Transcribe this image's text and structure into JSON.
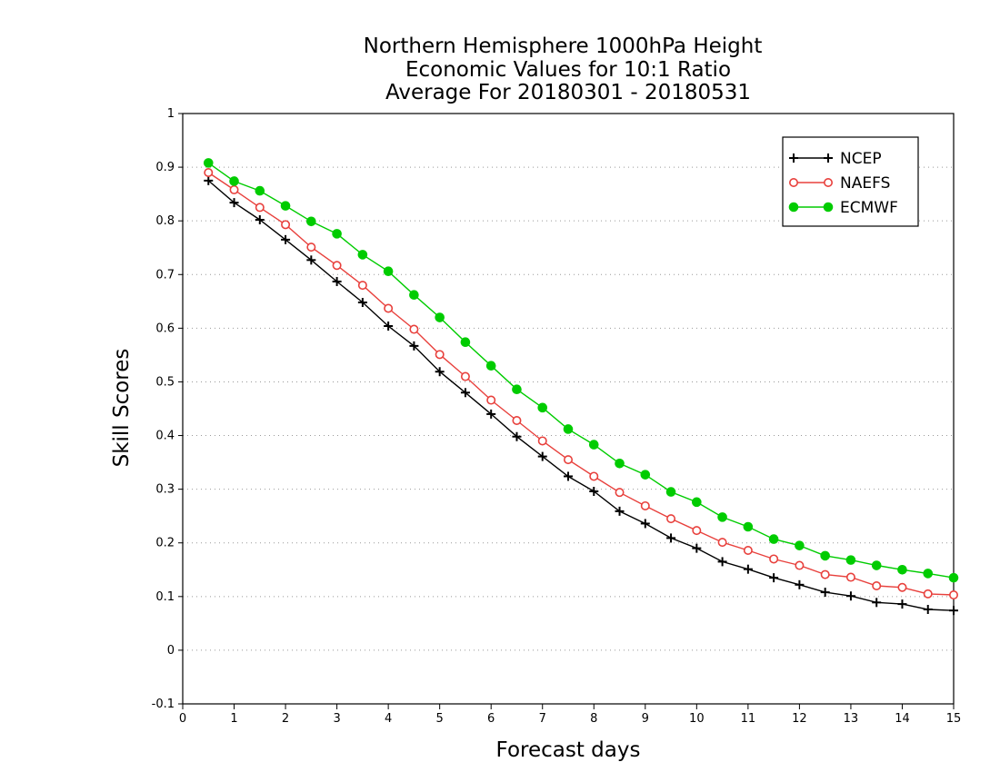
{
  "chart_data": {
    "type": "line",
    "title": [
      "Northern Hemisphere 1000hPa Height",
      "Economic Values for 10:1 Ratio",
      "Average For 20180301 - 20180531"
    ],
    "xlabel": "Forecast days",
    "ylabel": "Skill Scores",
    "xlim": [
      0,
      15
    ],
    "ylim": [
      -0.1,
      1
    ],
    "x_ticks": [
      0,
      1,
      2,
      3,
      4,
      5,
      6,
      7,
      8,
      9,
      10,
      11,
      12,
      13,
      14,
      15
    ],
    "y_ticks": [
      -0.1,
      0,
      0.1,
      0.2,
      0.3,
      0.4,
      0.5,
      0.6,
      0.7,
      0.8,
      0.9,
      1
    ],
    "y_tick_labels": [
      "-0.1",
      "0",
      "0.1",
      "0.2",
      "0.3",
      "0.4",
      "0.5",
      "0.6",
      "0.7",
      "0.8",
      "0.9",
      "1"
    ],
    "grid": "horizontal dotted",
    "legend_position": "top-right",
    "x": [
      0.5,
      1,
      1.5,
      2,
      2.5,
      3,
      3.5,
      4,
      4.5,
      5,
      5.5,
      6,
      6.5,
      7,
      7.5,
      8,
      8.5,
      9,
      9.5,
      10,
      10.5,
      11,
      11.5,
      12,
      12.5,
      13,
      13.5,
      14,
      14.5,
      15
    ],
    "series": [
      {
        "name": "NCEP",
        "color": "#000000",
        "marker": "plus",
        "values": [
          0.875,
          0.834,
          0.802,
          0.765,
          0.727,
          0.687,
          0.648,
          0.604,
          0.567,
          0.519,
          0.48,
          0.44,
          0.398,
          0.361,
          0.324,
          0.296,
          0.259,
          0.236,
          0.209,
          0.19,
          0.165,
          0.151,
          0.135,
          0.122,
          0.108,
          0.101,
          0.089,
          0.086,
          0.076,
          0.074
        ]
      },
      {
        "name": "NAEFS",
        "color": "#e8403c",
        "marker": "open-circle",
        "values": [
          0.89,
          0.858,
          0.825,
          0.793,
          0.751,
          0.717,
          0.68,
          0.637,
          0.598,
          0.551,
          0.51,
          0.466,
          0.428,
          0.39,
          0.355,
          0.324,
          0.294,
          0.269,
          0.245,
          0.223,
          0.201,
          0.186,
          0.17,
          0.158,
          0.141,
          0.136,
          0.12,
          0.117,
          0.105,
          0.103
        ]
      },
      {
        "name": "ECMWF",
        "color": "#00cc00",
        "marker": "filled-circle",
        "values": [
          0.908,
          0.874,
          0.856,
          0.828,
          0.799,
          0.776,
          0.737,
          0.706,
          0.662,
          0.62,
          0.574,
          0.53,
          0.486,
          0.452,
          0.412,
          0.383,
          0.348,
          0.327,
          0.295,
          0.276,
          0.248,
          0.23,
          0.207,
          0.195,
          0.176,
          0.168,
          0.158,
          0.15,
          0.143,
          0.135
        ]
      }
    ]
  }
}
